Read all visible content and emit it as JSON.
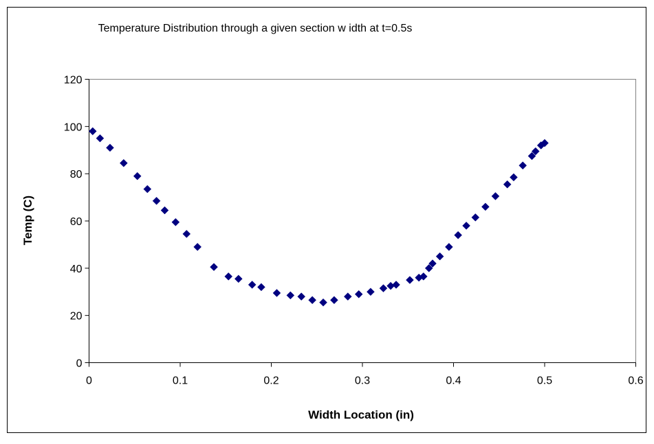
{
  "chart_data": {
    "type": "scatter",
    "title": "Temperature Distribution through a given section w idth at t=0.5s",
    "xlabel": "Width Location (in)",
    "ylabel": "Temp (C)",
    "xlim": [
      0,
      0.6
    ],
    "ylim": [
      0,
      120
    ],
    "x_ticks": [
      "0",
      "0.1",
      "0.2",
      "0.3",
      "0.4",
      "0.5",
      "0.6"
    ],
    "y_ticks": [
      "0",
      "20",
      "40",
      "60",
      "80",
      "100",
      "120"
    ],
    "grid": false,
    "legend": "none",
    "marker": "diamond",
    "series": [
      {
        "color": "#000080",
        "points": [
          [
            0.004,
            98
          ],
          [
            0.012,
            95
          ],
          [
            0.023,
            91
          ],
          [
            0.038,
            84.5
          ],
          [
            0.053,
            79
          ],
          [
            0.064,
            73.5
          ],
          [
            0.074,
            68.5
          ],
          [
            0.083,
            64.5
          ],
          [
            0.095,
            59.5
          ],
          [
            0.107,
            54.5
          ],
          [
            0.119,
            49
          ],
          [
            0.137,
            40.5
          ],
          [
            0.153,
            36.5
          ],
          [
            0.164,
            35.5
          ],
          [
            0.179,
            33
          ],
          [
            0.189,
            32
          ],
          [
            0.206,
            29.5
          ],
          [
            0.221,
            28.5
          ],
          [
            0.233,
            28
          ],
          [
            0.245,
            26.5
          ],
          [
            0.257,
            25.5
          ],
          [
            0.269,
            26.5
          ],
          [
            0.284,
            28
          ],
          [
            0.296,
            29
          ],
          [
            0.309,
            30
          ],
          [
            0.323,
            31.5
          ],
          [
            0.331,
            32.5
          ],
          [
            0.337,
            33
          ],
          [
            0.352,
            35
          ],
          [
            0.362,
            36
          ],
          [
            0.367,
            36.5
          ],
          [
            0.373,
            40
          ],
          [
            0.377,
            42
          ],
          [
            0.385,
            45
          ],
          [
            0.395,
            49
          ],
          [
            0.405,
            54
          ],
          [
            0.414,
            58
          ],
          [
            0.424,
            61.5
          ],
          [
            0.435,
            66
          ],
          [
            0.446,
            70.5
          ],
          [
            0.459,
            75.5
          ],
          [
            0.466,
            78.5
          ],
          [
            0.476,
            83.5
          ],
          [
            0.486,
            87.5
          ],
          [
            0.49,
            89.5
          ],
          [
            0.496,
            92
          ],
          [
            0.5,
            93
          ]
        ]
      }
    ]
  }
}
